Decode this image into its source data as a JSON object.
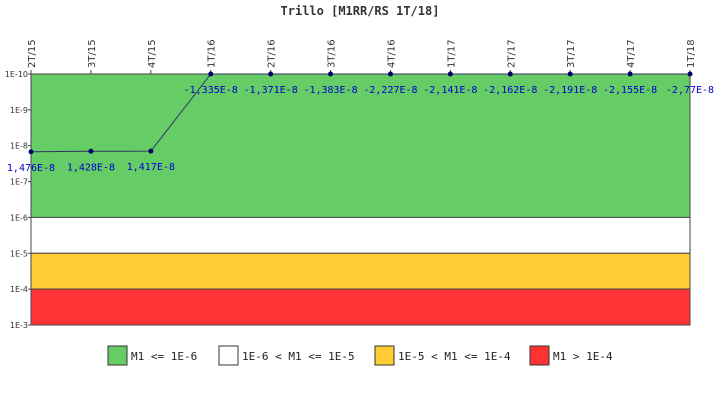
{
  "chart_data": {
    "type": "line",
    "title": "Trillo [M1RR/RS 1T/18]",
    "x": [
      "2T/15",
      "3T/15",
      "4T/15",
      "1T/16",
      "2T/16",
      "3T/16",
      "4T/16",
      "1T/17",
      "2T/17",
      "3T/17",
      "4T/17",
      "1T/18"
    ],
    "series": [
      {
        "values": [
          1.476e-08,
          1.428e-08,
          1.417e-08,
          -1.335e-08,
          -1.371e-08,
          -1.383e-08,
          -2.227e-08,
          -2.141e-08,
          -2.162e-08,
          -2.191e-08,
          -2.155e-08,
          -2.77e-08
        ],
        "labels": [
          "1,476E-8",
          "1,428E-8",
          "1,417E-8",
          "-1,335E-8",
          "-1,371E-8",
          "-1,383E-8",
          "-2,227E-8",
          "-2,141E-8",
          "-2,162E-8",
          "-2,191E-8",
          "-2,155E-8",
          "-2,77E-8"
        ],
        "color": "#333366"
      }
    ],
    "y_scale": "log-reversed",
    "y_ticks": [
      "1E-10",
      "1E-9",
      "1E-8",
      "1E-7",
      "1E-6",
      "1E-5",
      "1E-4",
      "1E-3"
    ],
    "ylim": [
      1e-10,
      0.001
    ],
    "bands": [
      {
        "from": 1e-10,
        "to": 1e-06,
        "color": "#66cc66",
        "legend": "M1 <= 1E-6"
      },
      {
        "from": 1e-06,
        "to": 1e-05,
        "color": "#ffffff",
        "legend": "1E-6 < M1 <= 1E-5"
      },
      {
        "from": 1e-05,
        "to": 0.0001,
        "color": "#ffcc33",
        "legend": "1E-5 < M1 <= 1E-4"
      },
      {
        "from": 0.0001,
        "to": 0.001,
        "color": "#ff3333",
        "legend": "M1 > 1E-4"
      }
    ],
    "legend_position": "bottom",
    "grid": false
  }
}
